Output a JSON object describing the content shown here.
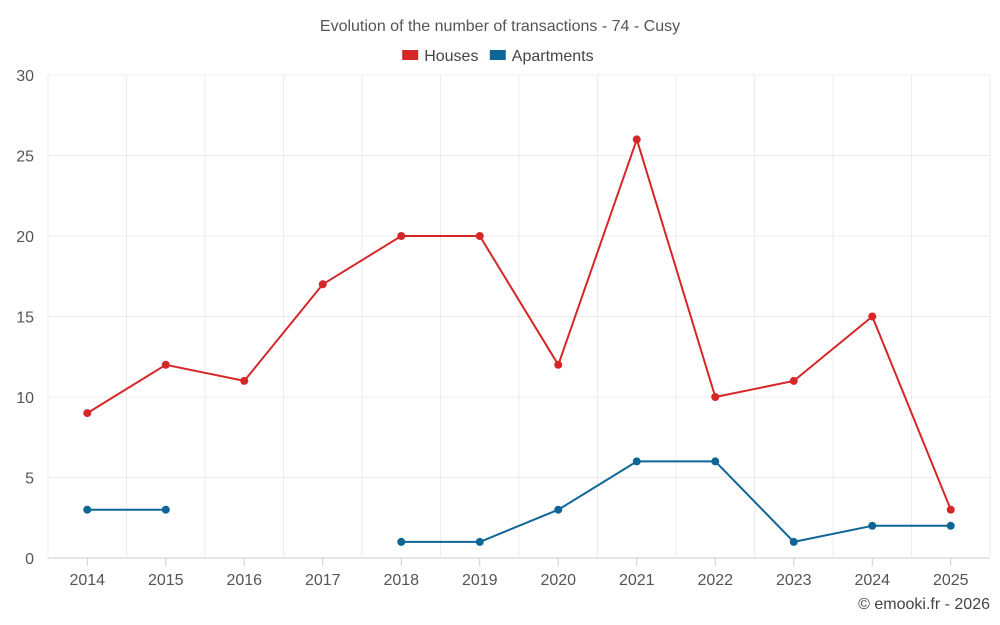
{
  "chart_data": {
    "type": "line",
    "title": "Evolution of the number of transactions - 74 - Cusy",
    "xlabel": "",
    "ylabel": "",
    "categories": [
      "2014",
      "2015",
      "2016",
      "2017",
      "2018",
      "2019",
      "2020",
      "2021",
      "2022",
      "2023",
      "2024",
      "2025"
    ],
    "ylim": [
      0,
      30
    ],
    "yticks": [
      "0",
      "5",
      "10",
      "15",
      "20",
      "25",
      "30"
    ],
    "grid": true,
    "legend_position": "top-center",
    "series": [
      {
        "name": "Houses",
        "color": "#d62728",
        "values": [
          9,
          12,
          11,
          17,
          20,
          20,
          12,
          26,
          10,
          11,
          15,
          3
        ]
      },
      {
        "name": "Apartments",
        "color": "#0e6697",
        "values": [
          3,
          3,
          null,
          null,
          1,
          1,
          3,
          6,
          6,
          1,
          2,
          2
        ]
      }
    ]
  },
  "credit": "© emooki.fr - 2026"
}
